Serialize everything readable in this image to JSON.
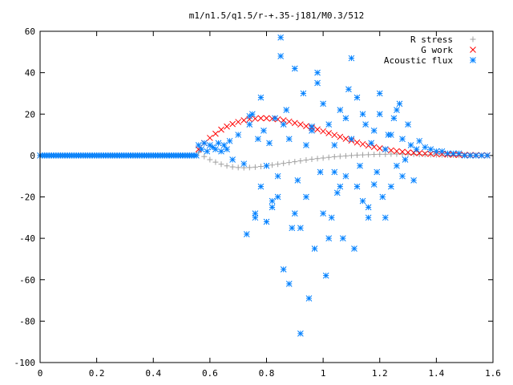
{
  "chart_data": {
    "type": "scatter",
    "title": "m1/n1.5/q1.5/r-+.35-j181/M0.3/512",
    "xlabel": "",
    "ylabel": "",
    "xlim": [
      0,
      1.6
    ],
    "ylim": [
      -100,
      60
    ],
    "xticks": [
      "0",
      "0.2",
      "0.4",
      "0.6",
      "0.8",
      "1",
      "1.2",
      "1.4",
      "1.6"
    ],
    "yticks": [
      "60",
      "40",
      "20",
      "0",
      "-20",
      "-40",
      "-60",
      "-80",
      "-100"
    ],
    "grid": false,
    "legend_position": "top-right",
    "series": [
      {
        "name": "R stress",
        "marker": "plus",
        "color": "#a0a0a0",
        "x": [
          0.56,
          0.58,
          0.6,
          0.62,
          0.64,
          0.66,
          0.68,
          0.7,
          0.72,
          0.74,
          0.76,
          0.78,
          0.8,
          0.82,
          0.84,
          0.86,
          0.88,
          0.9,
          0.92,
          0.94,
          0.96,
          0.98,
          1.0,
          1.02,
          1.04,
          1.06,
          1.08,
          1.1,
          1.12,
          1.14,
          1.16,
          1.18,
          1.2,
          1.22,
          1.24,
          1.26,
          1.28,
          1.3,
          1.32,
          1.34,
          1.36,
          1.38,
          1.4,
          1.42,
          1.44,
          1.46,
          1.48,
          1.5,
          1.52,
          1.54,
          1.56,
          1.58
        ],
        "y": [
          1.5,
          -0.5,
          -2.0,
          -3.2,
          -4.2,
          -5.0,
          -5.5,
          -5.8,
          -5.9,
          -5.8,
          -5.6,
          -5.3,
          -5.0,
          -4.6,
          -4.2,
          -3.8,
          -3.4,
          -3.0,
          -2.6,
          -2.2,
          -1.8,
          -1.5,
          -1.2,
          -0.9,
          -0.6,
          -0.4,
          -0.2,
          0.0,
          0.2,
          0.3,
          0.4,
          0.5,
          0.6,
          0.6,
          0.7,
          0.7,
          0.7,
          0.6,
          0.6,
          0.5,
          0.5,
          0.4,
          0.3,
          0.3,
          0.2,
          0.2,
          0.1,
          0.1,
          0.1,
          0.0,
          0.0,
          0.0
        ]
      },
      {
        "name": "G work",
        "marker": "cross",
        "color": "#ff0000",
        "x": [
          0.56,
          0.58,
          0.6,
          0.62,
          0.64,
          0.66,
          0.68,
          0.7,
          0.72,
          0.74,
          0.76,
          0.78,
          0.8,
          0.82,
          0.84,
          0.86,
          0.88,
          0.9,
          0.92,
          0.94,
          0.96,
          0.98,
          1.0,
          1.02,
          1.04,
          1.06,
          1.08,
          1.1,
          1.12,
          1.14,
          1.16,
          1.18,
          1.2,
          1.22,
          1.24,
          1.26,
          1.28,
          1.3,
          1.32,
          1.34,
          1.36,
          1.38,
          1.4,
          1.42,
          1.44,
          1.46,
          1.48,
          1.5,
          1.52,
          1.54,
          1.56,
          1.58
        ],
        "y": [
          3,
          6,
          8.5,
          10.5,
          12.5,
          14,
          15.2,
          16.2,
          17,
          17.5,
          17.8,
          18,
          18,
          17.8,
          17.5,
          17,
          16.4,
          15.7,
          15,
          14.2,
          13.4,
          12.6,
          11.7,
          10.8,
          9.9,
          9,
          8.1,
          7.2,
          6.3,
          5.5,
          4.8,
          4.1,
          3.5,
          3,
          2.5,
          2.1,
          1.8,
          1.5,
          1.3,
          1.1,
          0.9,
          0.8,
          0.7,
          0.6,
          0.5,
          0.4,
          0.3,
          0.3,
          0.2,
          0.2,
          0.1,
          0.1
        ]
      },
      {
        "name": "Acoustic flux",
        "marker": "star",
        "color": "#0080ff",
        "x": [
          0.56,
          0.57,
          0.58,
          0.59,
          0.6,
          0.61,
          0.62,
          0.63,
          0.64,
          0.65,
          0.66,
          0.67,
          0.68,
          0.7,
          0.72,
          0.73,
          0.74,
          0.75,
          0.76,
          0.77,
          0.78,
          0.79,
          0.8,
          0.81,
          0.82,
          0.83,
          0.84,
          0.85,
          0.85,
          0.86,
          0.87,
          0.88,
          0.89,
          0.9,
          0.91,
          0.92,
          0.93,
          0.94,
          0.95,
          0.96,
          0.97,
          0.98,
          0.99,
          1.0,
          1.01,
          1.02,
          1.03,
          1.04,
          1.05,
          1.06,
          1.07,
          1.08,
          1.09,
          1.1,
          1.11,
          1.12,
          1.13,
          1.14,
          1.15,
          1.16,
          1.17,
          1.18,
          1.19,
          1.2,
          1.21,
          1.22,
          1.23,
          1.24,
          1.25,
          1.26,
          1.27,
          1.28,
          1.29,
          1.3,
          1.31,
          1.32,
          1.33,
          1.34,
          1.36,
          1.38,
          1.4,
          1.42,
          1.44,
          1.46,
          1.48,
          1.5,
          1.52,
          1.54,
          1.56,
          1.58,
          0.74,
          0.76,
          0.8,
          0.84,
          0.88,
          0.92,
          0.96,
          1.0,
          1.04,
          1.08,
          1.12,
          1.16,
          1.2,
          1.24,
          1.28,
          0.78,
          0.82,
          0.86,
          0.9,
          0.94,
          0.98,
          1.02,
          1.06,
          1.1,
          1.14,
          1.18,
          1.22,
          1.26
        ],
        "y": [
          5,
          3,
          6,
          2,
          5,
          4,
          3,
          6,
          2,
          5,
          3,
          7,
          -2,
          10,
          -4,
          -38,
          15,
          20,
          -30,
          8,
          -15,
          12,
          -32,
          6,
          -25,
          18,
          -10,
          57,
          48,
          -55,
          22,
          -62,
          -35,
          42,
          -12,
          -86,
          30,
          -20,
          -69,
          12,
          -45,
          35,
          -8,
          25,
          -58,
          15,
          -30,
          5,
          -18,
          22,
          -40,
          -10,
          32,
          8,
          -45,
          28,
          -5,
          -22,
          15,
          -30,
          6,
          12,
          -8,
          20,
          -20,
          3,
          10,
          -15,
          18,
          -5,
          25,
          8,
          -2,
          15,
          5,
          -12,
          3,
          7,
          4,
          3,
          2,
          2,
          1,
          1,
          1,
          0,
          0,
          0,
          0,
          0,
          19,
          -28,
          -5,
          -20,
          8,
          -35,
          14,
          -28,
          -8,
          18,
          -15,
          -25,
          30,
          10,
          -10,
          28,
          -22,
          15,
          -28,
          5,
          40,
          -40,
          -15,
          47,
          20,
          -14,
          -30,
          22
        ]
      }
    ]
  }
}
